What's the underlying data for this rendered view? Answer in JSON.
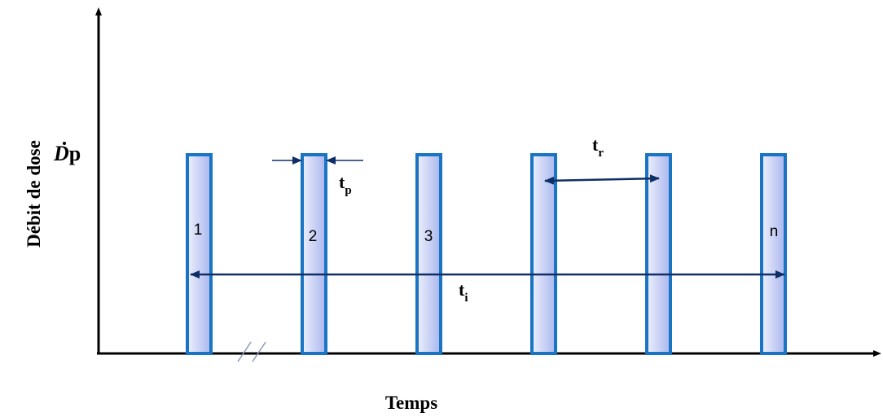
{
  "axes": {
    "y_label": "Débit de dose",
    "x_label": "Temps"
  },
  "dose_rate": {
    "symbol": "D",
    "subscript": "p"
  },
  "pulses": [
    {
      "label": "1"
    },
    {
      "label": "2"
    },
    {
      "label": "3"
    },
    {
      "label": ""
    },
    {
      "label": ""
    },
    {
      "label": "n"
    }
  ],
  "annotations": {
    "pulse_width": {
      "base": "t",
      "sub": "p"
    },
    "repetition": {
      "base": "t",
      "sub": "r"
    },
    "irradiation": {
      "base": "t",
      "sub": "i"
    }
  },
  "colors": {
    "pulse_stroke": "#1a74c4",
    "pulse_fill_light": "#eef0fc",
    "pulse_fill_dark": "#a9b6ee",
    "arrow": "#0f2f66",
    "axis": "#000000"
  }
}
